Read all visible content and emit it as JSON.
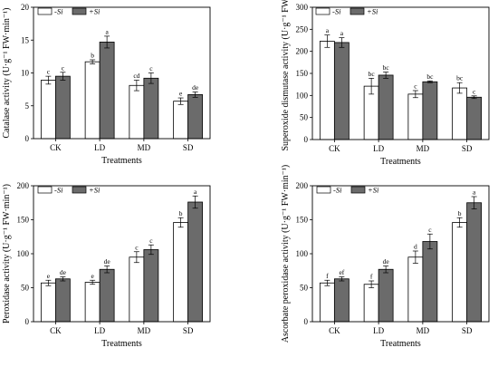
{
  "chart_data": [
    {
      "type": "bar",
      "title": "",
      "xlabel": "Treatments",
      "ylabel": "Catalase activity (U·g⁻¹ FW·min⁻¹)",
      "ylim": [
        0,
        20
      ],
      "yticks": [
        0,
        5,
        10,
        15,
        20
      ],
      "categories": [
        "CK",
        "LD",
        "MD",
        "SD"
      ],
      "legend_position": "top-left",
      "series": [
        {
          "name": "-Si",
          "color": "#ffffff",
          "values": [
            8.9,
            11.7,
            8.1,
            5.7
          ],
          "errors": [
            0.6,
            0.3,
            0.8,
            0.5
          ],
          "letters": [
            "c",
            "b",
            "cd",
            "e"
          ]
        },
        {
          "name": "+Si",
          "color": "#6b6b6b",
          "values": [
            9.5,
            14.7,
            9.2,
            6.7
          ],
          "errors": [
            0.6,
            0.9,
            0.8,
            0.4
          ],
          "letters": [
            "c",
            "a",
            "c",
            "de"
          ]
        }
      ]
    },
    {
      "type": "bar",
      "title": "",
      "xlabel": "Treatments",
      "ylabel": "Superoxide dismutase activity (U·g⁻¹ FW)",
      "ylim": [
        0,
        300
      ],
      "yticks": [
        0,
        50,
        100,
        150,
        200,
        250,
        300
      ],
      "categories": [
        "CK",
        "LD",
        "MD",
        "SD"
      ],
      "legend_position": "top-right",
      "series": [
        {
          "name": "-Si",
          "color": "#ffffff",
          "values": [
            223,
            121,
            103,
            117
          ],
          "errors": [
            14,
            18,
            8,
            12
          ],
          "letters": [
            "a",
            "bc",
            "c",
            "bc"
          ]
        },
        {
          "name": "+Si",
          "color": "#6b6b6b",
          "values": [
            220,
            146,
            131,
            96
          ],
          "errors": [
            11,
            7,
            2,
            3
          ],
          "letters": [
            "a",
            "bc",
            "bc",
            "c"
          ]
        }
      ]
    },
    {
      "type": "bar",
      "title": "",
      "xlabel": "Treatments",
      "ylabel": "Peroxidase activity (U·g⁻¹ FW·min⁻¹)",
      "ylim": [
        0,
        200
      ],
      "yticks": [
        0,
        50,
        100,
        150,
        200
      ],
      "categories": [
        "CK",
        "LD",
        "MD",
        "SD"
      ],
      "legend_position": "top-left",
      "series": [
        {
          "name": "-Si",
          "color": "#ffffff",
          "values": [
            57,
            58,
            95,
            146
          ],
          "errors": [
            4,
            3,
            8,
            7
          ],
          "letters": [
            "e",
            "e",
            "c",
            "b"
          ]
        },
        {
          "name": "+Si",
          "color": "#6b6b6b",
          "values": [
            63,
            77,
            106,
            176
          ],
          "errors": [
            3,
            5,
            7,
            9
          ],
          "letters": [
            "de",
            "de",
            "c",
            "a"
          ]
        }
      ]
    },
    {
      "type": "bar",
      "title": "",
      "xlabel": "Treatments",
      "ylabel": "Ascorbate peroxidase activity (U·g⁻¹ FW·min⁻¹)",
      "ylim": [
        0,
        200
      ],
      "yticks": [
        0,
        50,
        100,
        150,
        200
      ],
      "categories": [
        "CK",
        "LD",
        "MD",
        "SD"
      ],
      "legend_position": "top-left",
      "series": [
        {
          "name": "-Si",
          "color": "#ffffff",
          "values": [
            57,
            55,
            95,
            146
          ],
          "errors": [
            4,
            5,
            9,
            7
          ],
          "letters": [
            "f",
            "f",
            "d",
            "b"
          ]
        },
        {
          "name": "+Si",
          "color": "#6b6b6b",
          "values": [
            63,
            77,
            118,
            175
          ],
          "errors": [
            3,
            5,
            11,
            9
          ],
          "letters": [
            "ef",
            "de",
            "c",
            "a"
          ]
        }
      ]
    }
  ]
}
